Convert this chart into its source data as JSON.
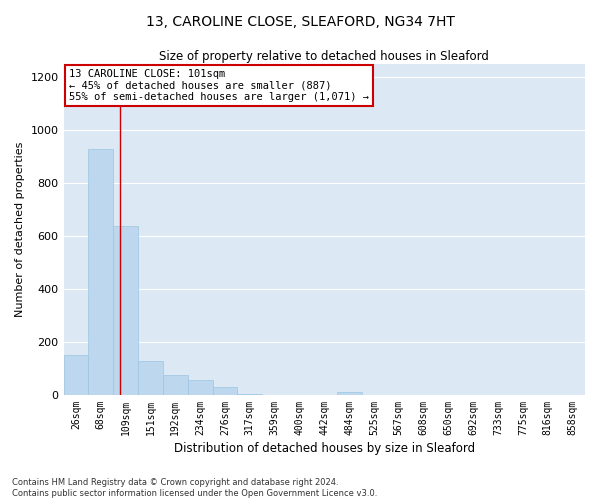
{
  "title_line1": "13, CAROLINE CLOSE, SLEAFORD, NG34 7HT",
  "title_line2": "Size of property relative to detached houses in Sleaford",
  "xlabel": "Distribution of detached houses by size in Sleaford",
  "ylabel": "Number of detached properties",
  "footnote": "Contains HM Land Registry data © Crown copyright and database right 2024.\nContains public sector information licensed under the Open Government Licence v3.0.",
  "bar_labels": [
    "26sqm",
    "68sqm",
    "109sqm",
    "151sqm",
    "192sqm",
    "234sqm",
    "276sqm",
    "317sqm",
    "359sqm",
    "400sqm",
    "442sqm",
    "484sqm",
    "525sqm",
    "567sqm",
    "608sqm",
    "650sqm",
    "692sqm",
    "733sqm",
    "775sqm",
    "816sqm",
    "858sqm"
  ],
  "bar_values": [
    150,
    930,
    640,
    130,
    75,
    55,
    30,
    5,
    0,
    0,
    0,
    10,
    0,
    0,
    0,
    0,
    0,
    0,
    0,
    0,
    0
  ],
  "bar_color": "#bdd7ee",
  "bar_edge_color": "#9ec4e0",
  "bg_color": "#dce9f5",
  "annotation_text": "13 CAROLINE CLOSE: 101sqm\n← 45% of detached houses are smaller (887)\n55% of semi-detached houses are larger (1,071) →",
  "annotation_box_color": "#ffffff",
  "annotation_edge_color": "#cc0000",
  "ylim": [
    0,
    1250
  ],
  "yticks": [
    0,
    200,
    400,
    600,
    800,
    1000,
    1200
  ],
  "grid_color": "#ffffff",
  "title1_fontsize": 10,
  "title2_fontsize": 8.5,
  "xlabel_fontsize": 8.5,
  "ylabel_fontsize": 8,
  "tick_fontsize": 7,
  "footnote_fontsize": 6,
  "annot_fontsize": 7.5
}
